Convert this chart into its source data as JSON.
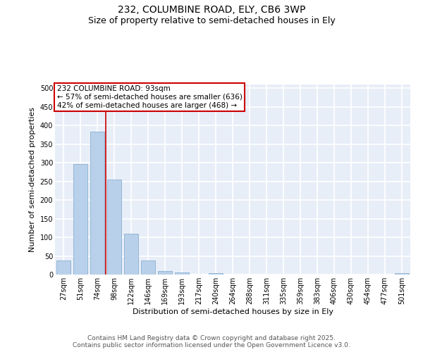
{
  "title_line1": "232, COLUMBINE ROAD, ELY, CB6 3WP",
  "title_line2": "Size of property relative to semi-detached houses in Ely",
  "xlabel": "Distribution of semi-detached houses by size in Ely",
  "ylabel": "Number of semi-detached properties",
  "bar_labels": [
    "27sqm",
    "51sqm",
    "74sqm",
    "98sqm",
    "122sqm",
    "146sqm",
    "169sqm",
    "193sqm",
    "217sqm",
    "240sqm",
    "264sqm",
    "288sqm",
    "311sqm",
    "335sqm",
    "359sqm",
    "383sqm",
    "406sqm",
    "430sqm",
    "454sqm",
    "477sqm",
    "501sqm"
  ],
  "bar_values": [
    37,
    296,
    384,
    255,
    109,
    37,
    9,
    6,
    0,
    3,
    0,
    0,
    0,
    0,
    0,
    0,
    0,
    0,
    0,
    0,
    3
  ],
  "bar_color": "#b8d0ea",
  "bar_edgecolor": "#8ab0d0",
  "vline_color": "#cc0000",
  "vline_x": 2.5,
  "annotation_text": "232 COLUMBINE ROAD: 93sqm\n← 57% of semi-detached houses are smaller (636)\n42% of semi-detached houses are larger (468) →",
  "annotation_box_edgecolor": "#cc0000",
  "ylim": [
    0,
    510
  ],
  "yticks": [
    0,
    50,
    100,
    150,
    200,
    250,
    300,
    350,
    400,
    450,
    500
  ],
  "background_color": "#e8eef8",
  "grid_color": "#ffffff",
  "footer_text": "Contains HM Land Registry data © Crown copyright and database right 2025.\nContains public sector information licensed under the Open Government Licence v3.0.",
  "title_fontsize": 10,
  "subtitle_fontsize": 9,
  "axis_label_fontsize": 8,
  "tick_fontsize": 7,
  "annotation_fontsize": 7.5,
  "footer_fontsize": 6.5
}
